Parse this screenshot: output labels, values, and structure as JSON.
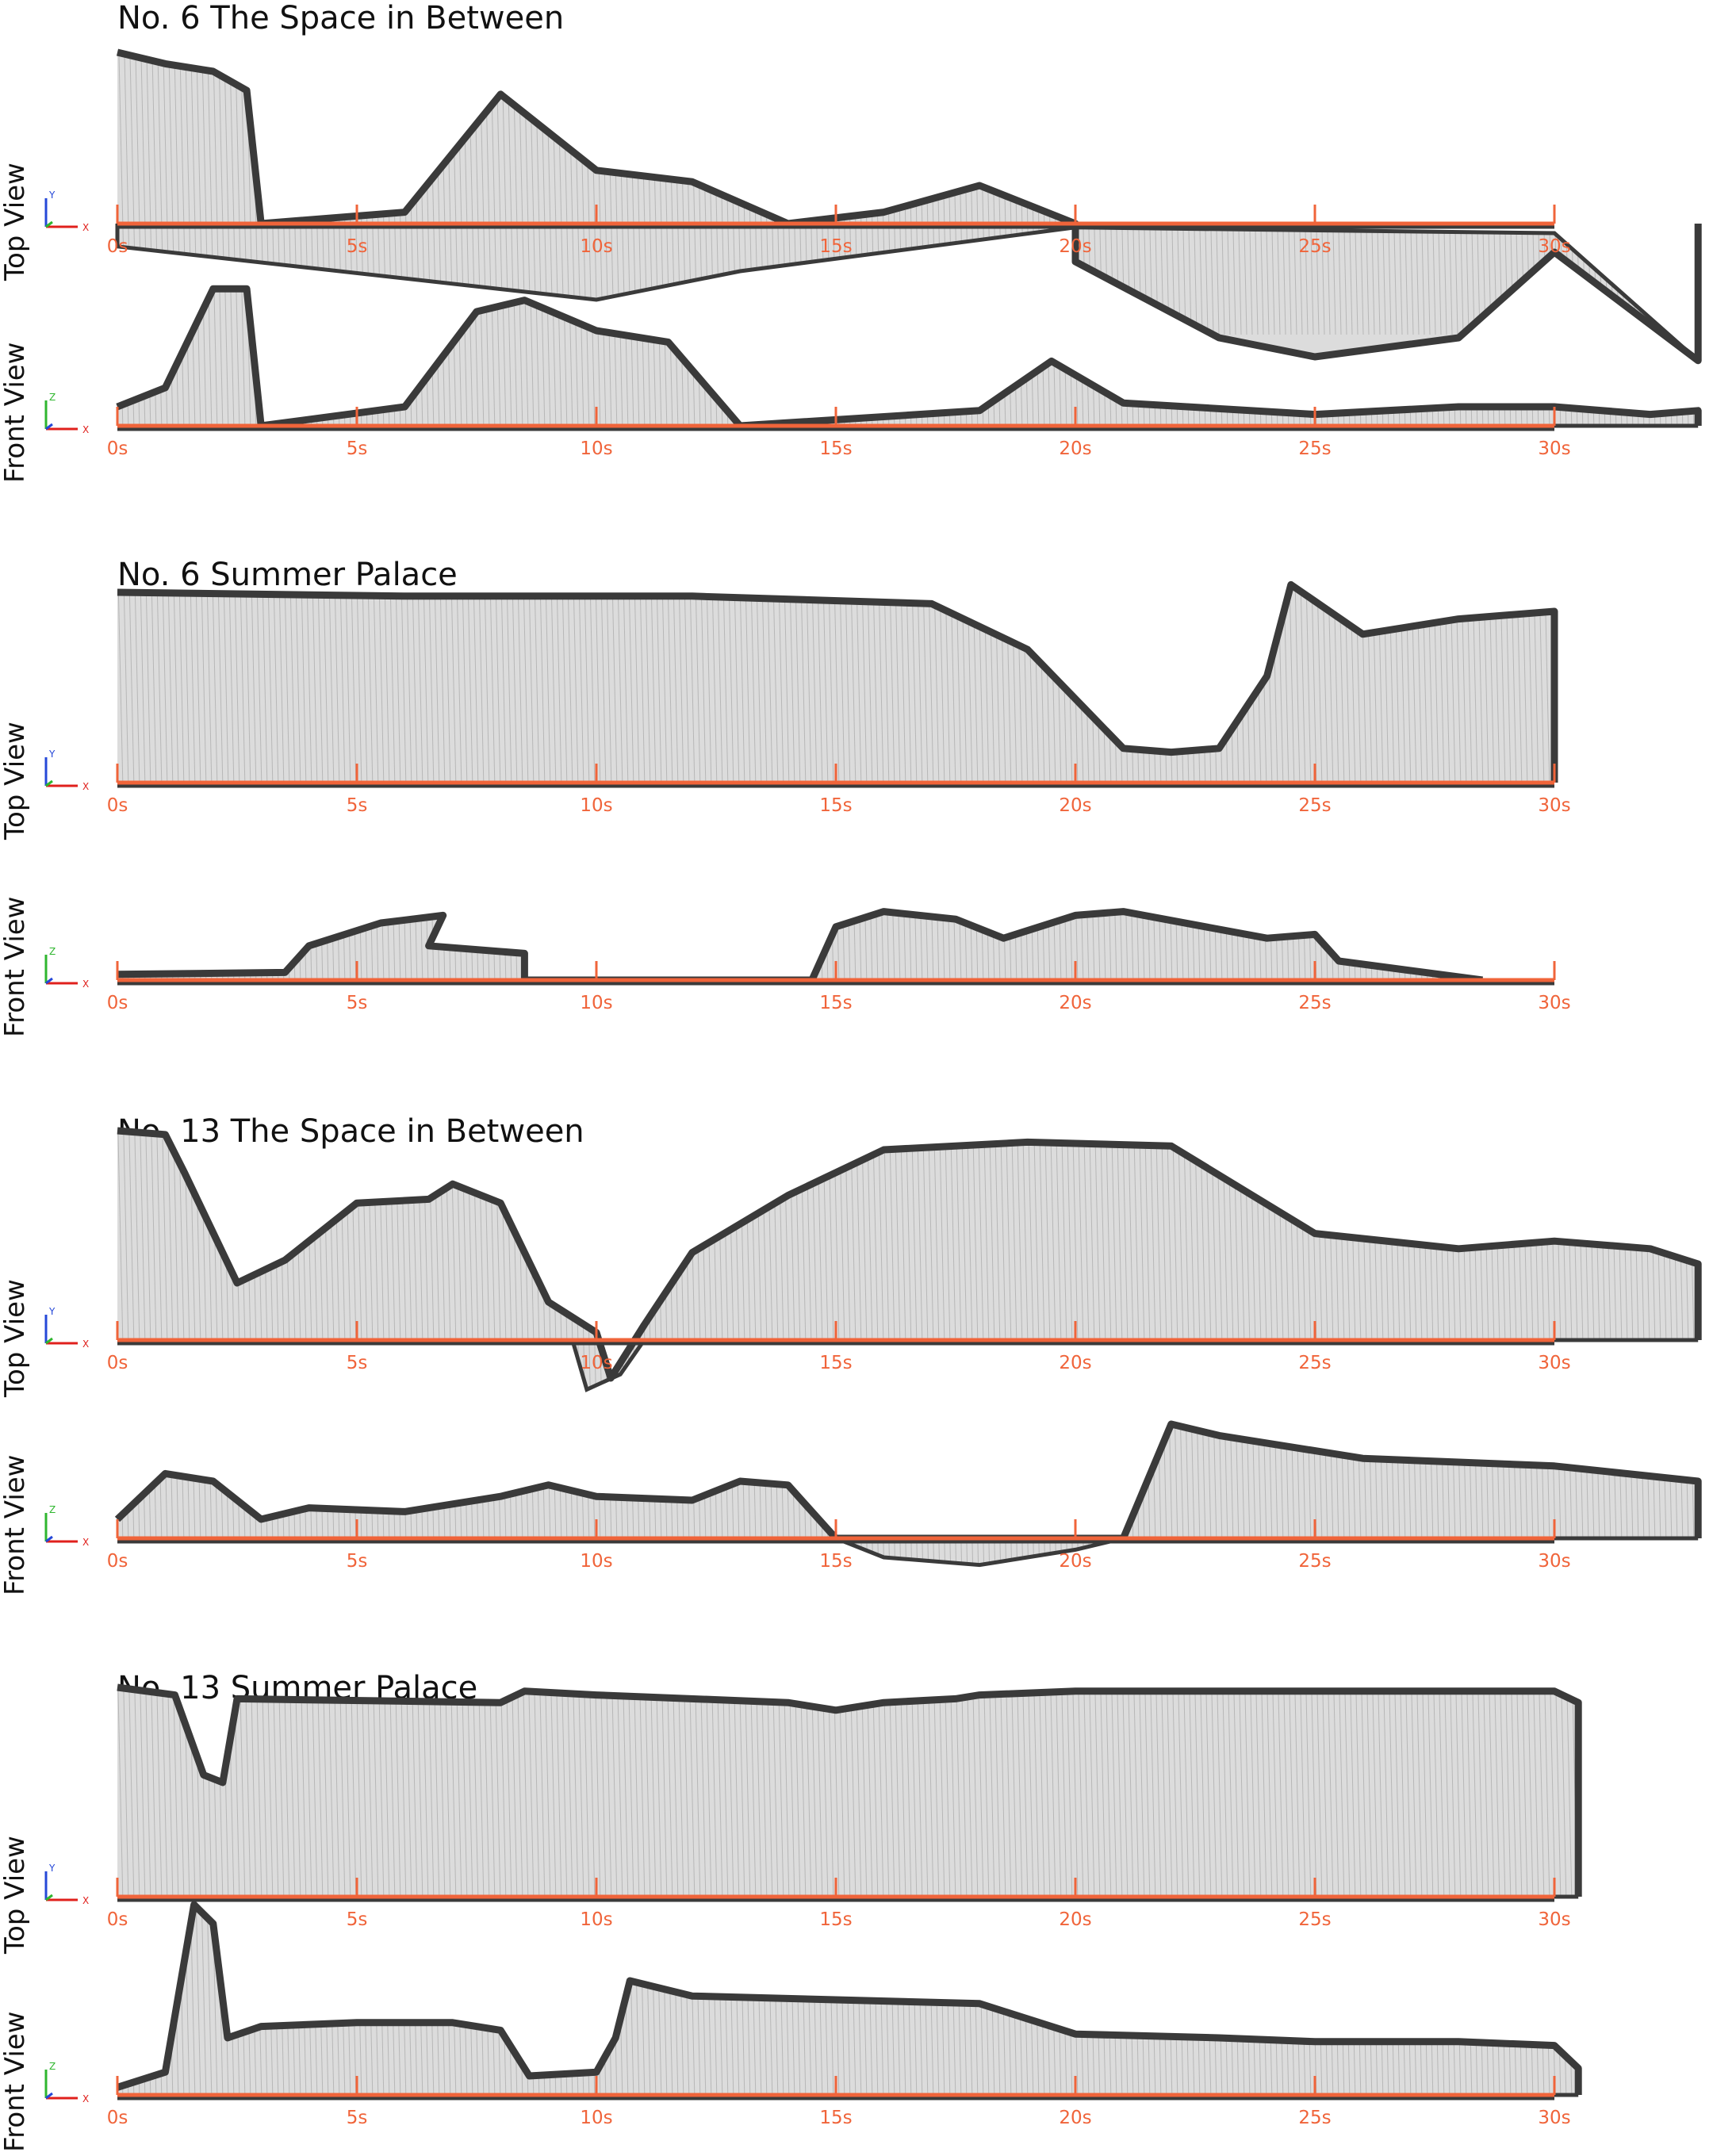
{
  "colors": {
    "timeline": "#f0643a",
    "tick_text": "#f0643a",
    "silhouette": "#3a3a3a",
    "vector_lines": "#9a9a9a",
    "axis_x": "#e0201c",
    "axis_y": "#2548d8",
    "axis_z": "#2fb62f"
  },
  "axis_icon": {
    "top_view_vertical": "Y",
    "front_view_vertical": "Z",
    "horizontal": "X"
  },
  "ticks": [
    "0s",
    "5s",
    "10s",
    "15s",
    "20s",
    "25s",
    "30s"
  ],
  "sections": [
    {
      "title": "No. 6  The Space in Between",
      "panels": [
        {
          "label": "Top View",
          "top": [
            [
              0,
              90
            ],
            [
              1,
              84
            ],
            [
              2,
              80
            ],
            [
              2.7,
              70
            ],
            [
              3,
              0
            ],
            [
              6,
              6
            ],
            [
              8,
              68
            ],
            [
              10,
              28
            ],
            [
              12,
              22
            ],
            [
              14,
              0
            ],
            [
              16,
              6
            ],
            [
              18,
              20
            ],
            [
              20,
              0
            ],
            [
              20,
              -20
            ],
            [
              23,
              -60
            ],
            [
              25,
              -70
            ],
            [
              28,
              -60
            ],
            [
              30,
              -15
            ],
            [
              33,
              -72
            ],
            [
              33,
              0
            ]
          ],
          "bottom": [
            [
              0,
              0
            ],
            [
              0,
              -12
            ],
            [
              10,
              -40
            ],
            [
              13,
              -25
            ],
            [
              20,
              -2
            ],
            [
              30,
              -5
            ],
            [
              33,
              -72
            ]
          ]
        },
        {
          "label": "Front View",
          "top": [
            [
              0,
              10
            ],
            [
              1,
              20
            ],
            [
              2,
              72
            ],
            [
              2.7,
              72
            ],
            [
              3,
              0
            ],
            [
              6,
              10
            ],
            [
              7.5,
              60
            ],
            [
              8.5,
              66
            ],
            [
              10,
              50
            ],
            [
              11.5,
              44
            ],
            [
              13,
              0
            ],
            [
              18,
              8
            ],
            [
              19.5,
              34
            ],
            [
              21,
              12
            ],
            [
              25,
              6
            ],
            [
              28,
              10
            ],
            [
              30,
              10
            ],
            [
              32,
              6
            ],
            [
              33,
              8
            ],
            [
              33,
              0
            ]
          ],
          "bottom": [
            [
              0,
              0
            ],
            [
              33,
              0
            ]
          ]
        }
      ]
    },
    {
      "title": "No. 6  Summer Palace",
      "panels": [
        {
          "label": "Top View",
          "top": [
            [
              0,
              100
            ],
            [
              6,
              98
            ],
            [
              12,
              98
            ],
            [
              17,
              94
            ],
            [
              19,
              70
            ],
            [
              21,
              18
            ],
            [
              22,
              16
            ],
            [
              23,
              18
            ],
            [
              24,
              56
            ],
            [
              24.5,
              104
            ],
            [
              26,
              78
            ],
            [
              28,
              86
            ],
            [
              30,
              90
            ],
            [
              30,
              0
            ]
          ],
          "bottom": [
            [
              0,
              0
            ],
            [
              30,
              0
            ]
          ]
        },
        {
          "label": "Front View",
          "top": [
            [
              0,
              3
            ],
            [
              3.5,
              4
            ],
            [
              4,
              18
            ],
            [
              5.5,
              30
            ],
            [
              6.8,
              34
            ],
            [
              6.5,
              18
            ],
            [
              8.5,
              14
            ],
            [
              8.5,
              0
            ],
            [
              14.5,
              0
            ],
            [
              15,
              28
            ],
            [
              16,
              36
            ],
            [
              17.5,
              32
            ],
            [
              18.5,
              22
            ],
            [
              20,
              34
            ],
            [
              21,
              36
            ],
            [
              24,
              22
            ],
            [
              25,
              24
            ],
            [
              25.5,
              10
            ],
            [
              28.5,
              0
            ]
          ],
          "bottom": [
            [
              0,
              0
            ],
            [
              28.5,
              0
            ]
          ]
        }
      ]
    },
    {
      "title": "No. 13  The Space in Between",
      "panels": [
        {
          "label": "Top View",
          "top": [
            [
              0,
              110
            ],
            [
              1,
              108
            ],
            [
              1.4,
              88
            ],
            [
              2.5,
              30
            ],
            [
              3.5,
              42
            ],
            [
              5,
              72
            ],
            [
              6.5,
              74
            ],
            [
              7,
              82
            ],
            [
              8,
              72
            ],
            [
              9,
              20
            ],
            [
              10,
              4
            ],
            [
              10.3,
              -20
            ],
            [
              11,
              8
            ],
            [
              12,
              46
            ],
            [
              14,
              76
            ],
            [
              16,
              100
            ],
            [
              19,
              104
            ],
            [
              22,
              102
            ],
            [
              25,
              56
            ],
            [
              28,
              48
            ],
            [
              30,
              52
            ],
            [
              32,
              48
            ],
            [
              33,
              40
            ],
            [
              33,
              0
            ]
          ],
          "bottom": [
            [
              0,
              0
            ],
            [
              9.5,
              0
            ],
            [
              9.8,
              -26
            ],
            [
              10.5,
              -18
            ],
            [
              11,
              0
            ],
            [
              33,
              0
            ]
          ]
        },
        {
          "label": "Front View",
          "top": [
            [
              0,
              10
            ],
            [
              1,
              34
            ],
            [
              2,
              30
            ],
            [
              3,
              10
            ],
            [
              4,
              16
            ],
            [
              6,
              14
            ],
            [
              8,
              22
            ],
            [
              9,
              28
            ],
            [
              10,
              22
            ],
            [
              12,
              20
            ],
            [
              13,
              30
            ],
            [
              14,
              28
            ],
            [
              15,
              0
            ],
            [
              21,
              0
            ],
            [
              22,
              60
            ],
            [
              23,
              54
            ],
            [
              26,
              42
            ],
            [
              28,
              40
            ],
            [
              30,
              38
            ],
            [
              33,
              30
            ],
            [
              33,
              0
            ]
          ],
          "bottom": [
            [
              0,
              0
            ],
            [
              15,
              0
            ],
            [
              16,
              -10
            ],
            [
              18,
              -14
            ],
            [
              20,
              -6
            ],
            [
              21,
              0
            ],
            [
              33,
              0
            ]
          ]
        }
      ]
    },
    {
      "title": "No. 13  Summer Palace",
      "panels": [
        {
          "label": "Top View",
          "top": [
            [
              0,
              110
            ],
            [
              1.2,
              106
            ],
            [
              1.8,
              64
            ],
            [
              2.2,
              60
            ],
            [
              2.5,
              104
            ],
            [
              8,
              102
            ],
            [
              8.5,
              108
            ],
            [
              10,
              106
            ],
            [
              14,
              102
            ],
            [
              15,
              98
            ],
            [
              16,
              102
            ],
            [
              17.5,
              104
            ],
            [
              18,
              106
            ],
            [
              20,
              108
            ],
            [
              24,
              108
            ],
            [
              27,
              108
            ],
            [
              30,
              108
            ],
            [
              30.5,
              102
            ],
            [
              30.5,
              0
            ]
          ],
          "bottom": [
            [
              0,
              0
            ],
            [
              30.5,
              0
            ]
          ]
        },
        {
          "label": "Front View",
          "top": [
            [
              0,
              4
            ],
            [
              1,
              12
            ],
            [
              1.6,
              100
            ],
            [
              2,
              90
            ],
            [
              2.3,
              30
            ],
            [
              3,
              36
            ],
            [
              5,
              38
            ],
            [
              7,
              38
            ],
            [
              8,
              34
            ],
            [
              8.6,
              10
            ],
            [
              10,
              12
            ],
            [
              10.4,
              30
            ],
            [
              10.7,
              60
            ],
            [
              12,
              52
            ],
            [
              15,
              50
            ],
            [
              18,
              48
            ],
            [
              20,
              32
            ],
            [
              23,
              30
            ],
            [
              25,
              28
            ],
            [
              28,
              28
            ],
            [
              30,
              26
            ],
            [
              30.5,
              14
            ],
            [
              30.5,
              0
            ]
          ],
          "bottom": [
            [
              0,
              0
            ],
            [
              30.5,
              0
            ]
          ]
        }
      ]
    }
  ]
}
